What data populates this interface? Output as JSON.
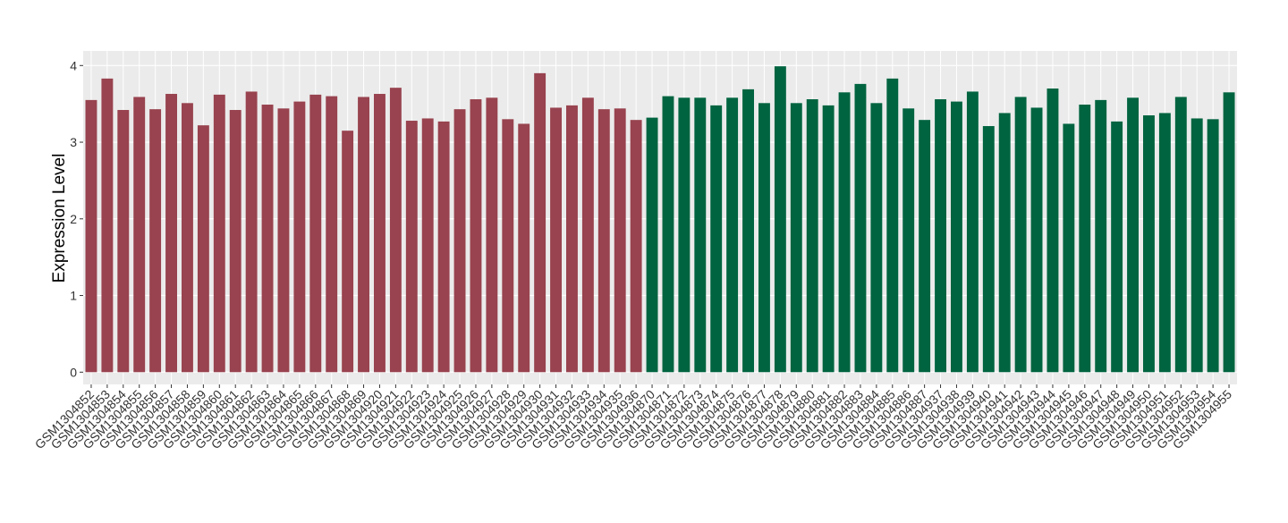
{
  "chart_data": {
    "type": "bar",
    "y_label": "Expression Level",
    "categories": [
      "GSM1304852",
      "GSM1304853",
      "GSM1304854",
      "GSM1304855",
      "GSM1304856",
      "GSM1304857",
      "GSM1304858",
      "GSM1304859",
      "GSM1304860",
      "GSM1304861",
      "GSM1304862",
      "GSM1304863",
      "GSM1304864",
      "GSM1304865",
      "GSM1304866",
      "GSM1304867",
      "GSM1304868",
      "GSM1304869",
      "GSM1304920",
      "GSM1304921",
      "GSM1304922",
      "GSM1304923",
      "GSM1304924",
      "GSM1304925",
      "GSM1304926",
      "GSM1304927",
      "GSM1304928",
      "GSM1304929",
      "GSM1304930",
      "GSM1304931",
      "GSM1304932",
      "GSM1304933",
      "GSM1304934",
      "GSM1304935",
      "GSM1304936",
      "GSM1304870",
      "GSM1304871",
      "GSM1304872",
      "GSM1304873",
      "GSM1304874",
      "GSM1304875",
      "GSM1304876",
      "GSM1304877",
      "GSM1304878",
      "GSM1304879",
      "GSM1304880",
      "GSM1304881",
      "GSM1304882",
      "GSM1304883",
      "GSM1304884",
      "GSM1304885",
      "GSM1304886",
      "GSM1304887",
      "GSM1304937",
      "GSM1304938",
      "GSM1304939",
      "GSM1304940",
      "GSM1304941",
      "GSM1304942",
      "GSM1304943",
      "GSM1304944",
      "GSM1304945",
      "GSM1304946",
      "GSM1304947",
      "GSM1304948",
      "GSM1304949",
      "GSM1304950",
      "GSM1304951",
      "GSM1304952",
      "GSM1304953",
      "GSM1304954",
      "GSM1304955"
    ],
    "values": [
      3.55,
      3.83,
      3.42,
      3.59,
      3.43,
      3.63,
      3.51,
      3.22,
      3.62,
      3.42,
      3.66,
      3.49,
      3.44,
      3.53,
      3.62,
      3.6,
      3.15,
      3.59,
      3.63,
      3.71,
      3.28,
      3.31,
      3.27,
      3.43,
      3.56,
      3.58,
      3.3,
      3.24,
      3.9,
      3.45,
      3.48,
      3.58,
      3.43,
      3.44,
      3.29,
      3.32,
      3.6,
      3.58,
      3.58,
      3.48,
      3.58,
      3.69,
      3.51,
      3.99,
      3.51,
      3.56,
      3.48,
      3.65,
      3.76,
      3.51,
      3.83,
      3.44,
      3.29,
      3.56,
      3.53,
      3.66,
      3.21,
      3.38,
      3.59,
      3.45,
      3.7,
      3.24,
      3.49,
      3.55,
      3.27,
      3.58,
      3.35,
      3.38,
      3.59,
      3.31,
      3.3,
      3.65
    ],
    "colors": [
      "#98434f",
      "#98434f",
      "#98434f",
      "#98434f",
      "#98434f",
      "#98434f",
      "#98434f",
      "#98434f",
      "#98434f",
      "#98434f",
      "#98434f",
      "#98434f",
      "#98434f",
      "#98434f",
      "#98434f",
      "#98434f",
      "#98434f",
      "#98434f",
      "#98434f",
      "#98434f",
      "#98434f",
      "#98434f",
      "#98434f",
      "#98434f",
      "#98434f",
      "#98434f",
      "#98434f",
      "#98434f",
      "#98434f",
      "#98434f",
      "#98434f",
      "#98434f",
      "#98434f",
      "#98434f",
      "#98434f",
      "#006440",
      "#006440",
      "#006440",
      "#006440",
      "#006440",
      "#006440",
      "#006440",
      "#006440",
      "#006440",
      "#006440",
      "#006440",
      "#006440",
      "#006440",
      "#006440",
      "#006440",
      "#006440",
      "#006440",
      "#006440",
      "#006440",
      "#006440",
      "#006440",
      "#006440",
      "#006440",
      "#006440",
      "#006440",
      "#006440",
      "#006440",
      "#006440",
      "#006440",
      "#006440",
      "#006440",
      "#006440",
      "#006440",
      "#006440",
      "#006440",
      "#006440",
      "#006440"
    ],
    "ylim": [
      -0.16,
      4.19
    ],
    "yticks": [
      0,
      1,
      2,
      3,
      4
    ],
    "grid": true
  }
}
